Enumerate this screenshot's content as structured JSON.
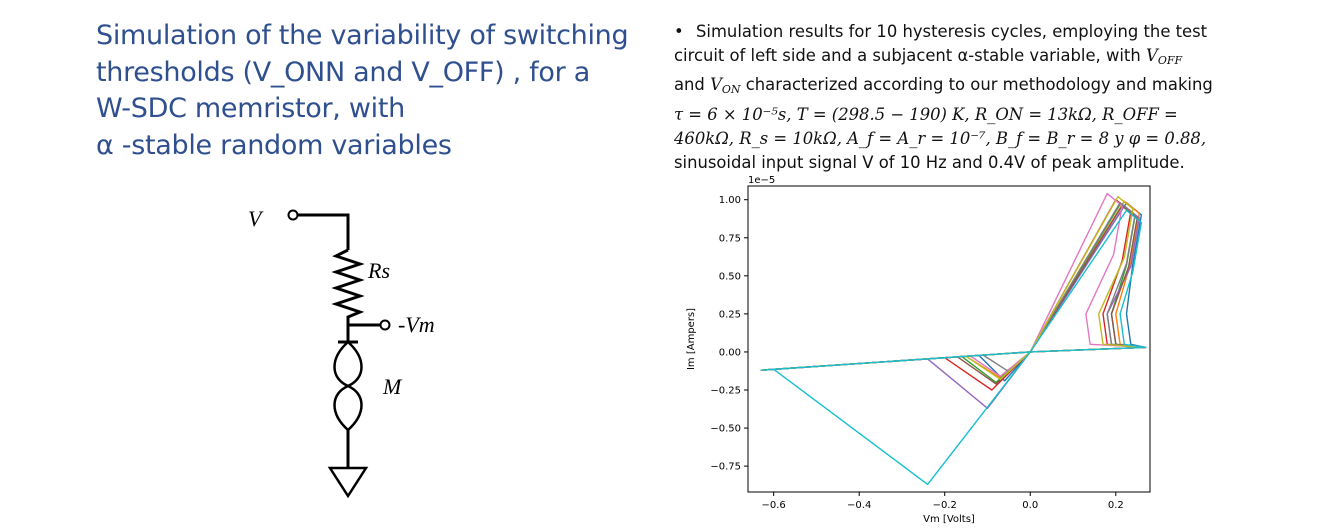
{
  "title": {
    "lines": [
      "Simulation of the variability of switching",
      "thresholds (V_ONN and V_OFF) , for a",
      "W-SDC memristor, with",
      "α -stable random variables"
    ]
  },
  "bullet": {
    "line1": "Simulation results for 10 hysteresis cycles, employing the test",
    "line2": "circuit of left side and a subjacent α-stable variable, with",
    "line2_var": "V",
    "line2_sub": "OFF",
    "line3_var": "V",
    "line3_sub": "ON",
    "line3_pre": "and",
    "line3_post": "characterized according to our methodology and making",
    "line4": "τ = 6 × 10⁻⁵s, T = (298.5 − 190) K, R_ON = 13kΩ, R_OFF =",
    "line5": "460kΩ, R_s = 10kΩ, A_f = A_r = 10⁻⁷, B_f = B_r = 8 y φ = 0.88,",
    "line6": "sinusoidal input signal V of 10 Hz and 0.4V of peak amplitude."
  },
  "circuit": {
    "label_v": "V",
    "label_rs": "Rs",
    "label_vm": "-Vm",
    "label_m": "M"
  },
  "chart_data": {
    "type": "line",
    "title": "",
    "xlabel": "Vm [Volts]",
    "ylabel": "Im [Ampers]",
    "offset_text": "1e−5",
    "xlim": [
      -0.66,
      0.28
    ],
    "ylim": [
      -0.92,
      1.09
    ],
    "xticks": [
      -0.6,
      -0.4,
      -0.2,
      0.0,
      0.2
    ],
    "xtick_labels": [
      "−0.6",
      "−0.4",
      "−0.2",
      "0.0",
      "0.2"
    ],
    "yticks": [
      1.0,
      0.75,
      0.5,
      0.25,
      0.0,
      -0.25,
      -0.5,
      -0.75
    ],
    "ytick_labels": [
      "1.00",
      "0.75",
      "0.50",
      "0.25",
      "0.00",
      "−0.25",
      "−0.50",
      "−0.75"
    ],
    "grid": false,
    "series": [
      {
        "color": "#1f77b4",
        "neg_x": -0.12,
        "neg_y": -0.05,
        "neg_min_x": -0.06,
        "neg_min_y": -0.19,
        "pos_x": 0.245,
        "pos_y": 0.98,
        "pos_back_x": 0.225
      },
      {
        "color": "#ff7f0e",
        "neg_x": -0.15,
        "neg_y": -0.04,
        "neg_min_x": -0.07,
        "neg_min_y": -0.17,
        "pos_x": 0.24,
        "pos_y": 0.99,
        "pos_back_x": 0.2
      },
      {
        "color": "#2ca02c",
        "neg_x": -0.16,
        "neg_y": -0.04,
        "neg_min_x": -0.08,
        "neg_min_y": -0.2,
        "pos_x": 0.23,
        "pos_y": 0.97,
        "pos_back_x": 0.19
      },
      {
        "color": "#d62728",
        "neg_x": -0.2,
        "neg_y": -0.04,
        "neg_min_x": -0.09,
        "neg_min_y": -0.25,
        "pos_x": 0.22,
        "pos_y": 1.0,
        "pos_back_x": 0.17
      },
      {
        "color": "#9467bd",
        "neg_x": -0.24,
        "neg_y": -0.03,
        "neg_min_x": -0.1,
        "neg_min_y": -0.37,
        "pos_x": 0.24,
        "pos_y": 0.96,
        "pos_back_x": 0.18
      },
      {
        "color": "#8c564b",
        "neg_x": -0.17,
        "neg_y": -0.04,
        "neg_min_x": -0.08,
        "neg_min_y": -0.21,
        "pos_x": 0.235,
        "pos_y": 0.96,
        "pos_back_x": 0.19
      },
      {
        "color": "#e377c2",
        "neg_x": -0.14,
        "neg_y": -0.04,
        "neg_min_x": -0.07,
        "neg_min_y": -0.16,
        "pos_x": 0.2,
        "pos_y": 1.04,
        "pos_back_x": 0.13
      },
      {
        "color": "#7f7f7f",
        "neg_x": -0.11,
        "neg_y": -0.05,
        "neg_min_x": -0.05,
        "neg_min_y": -0.13,
        "pos_x": 0.23,
        "pos_y": 0.98,
        "pos_back_x": 0.18
      },
      {
        "color": "#bcbd22",
        "neg_x": -0.15,
        "neg_y": -0.04,
        "neg_min_x": -0.07,
        "neg_min_y": -0.18,
        "pos_x": 0.225,
        "pos_y": 1.02,
        "pos_back_x": 0.16
      },
      {
        "color": "#17becf",
        "neg_x": -0.6,
        "neg_y": -0.12,
        "neg_min_x": -0.24,
        "neg_min_y": -0.87,
        "pos_x": 0.245,
        "pos_y": 0.93,
        "pos_back_x": 0.21
      }
    ]
  }
}
